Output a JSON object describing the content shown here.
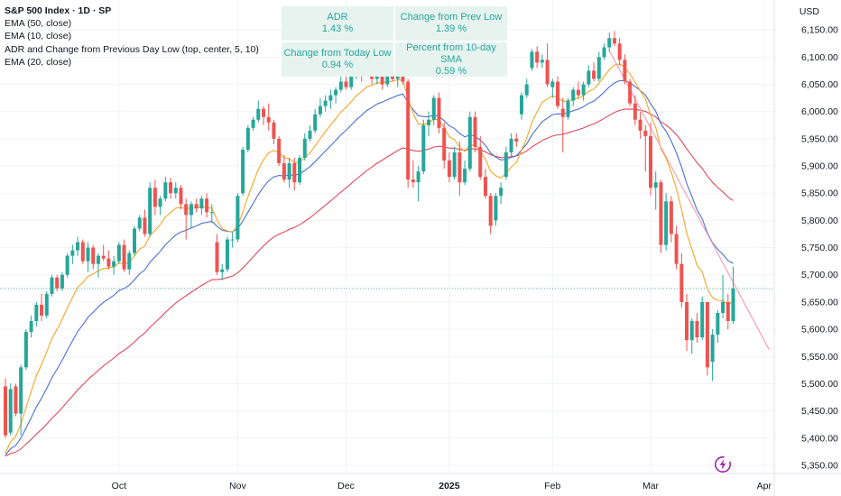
{
  "header": {
    "currency": "USD",
    "title": "S&P 500 Index · 1D · SP"
  },
  "legend": {
    "items": [
      "EMA (50, close)",
      "EMA (10, close)",
      "ADR and Change from Previous Day Low (top, center, 5, 10)",
      "EMA (20, close)"
    ]
  },
  "info_table": {
    "cells": [
      {
        "label": "ADR",
        "value": "1.43 %"
      },
      {
        "label": "Change from Prev Low",
        "value": "1.39 %"
      },
      {
        "label": "Change from Today Low",
        "value": "0.94 %"
      },
      {
        "label": "Percent from 10-day SMA",
        "value": "0.59 %"
      }
    ]
  },
  "colors": {
    "up": "#26a69a",
    "down": "#ef5350",
    "ema10": "#f5a623",
    "ema20": "#4a6fd6",
    "ema50": "#e04a5a",
    "trendline": "#f4a0b4",
    "info_bg": "#e6f3ef",
    "info_text": "#26a69a",
    "last_price_line": "#26a69a"
  },
  "icons": {
    "bolt": "lightning-bolt-icon"
  },
  "chart_data": {
    "type": "candlestick",
    "title": "S&P 500 Index · 1D · SP",
    "y_axis_ticks": [
      6150,
      6100,
      6050,
      6000,
      5950,
      5900,
      5850,
      5800,
      5750,
      5700,
      5650,
      5600,
      5550,
      5500,
      5450,
      5400,
      5350
    ],
    "y_tick_labels": [
      "6,150.00",
      "6,100.00",
      "6,050.00",
      "6,000.00",
      "5,950.00",
      "5,900.00",
      "5,850.00",
      "5,800.00",
      "5,750.00",
      "5,700.00",
      "5,650.00",
      "5,600.00",
      "5,550.00",
      "5,500.00",
      "5,450.00",
      "5,400.00",
      "5,350.00"
    ],
    "ylim": [
      5335,
      6205
    ],
    "x_axis_ticks": [
      {
        "label": "Oct",
        "index": 22,
        "bold": false
      },
      {
        "label": "Nov",
        "index": 45,
        "bold": false
      },
      {
        "label": "Dec",
        "index": 66,
        "bold": false
      },
      {
        "label": "2025",
        "index": 86,
        "bold": true
      },
      {
        "label": "Feb",
        "index": 106,
        "bold": false
      },
      {
        "label": "Mar",
        "index": 125,
        "bold": false
      },
      {
        "label": "Apr",
        "index": 147,
        "bold": false
      }
    ],
    "last_price": 5675,
    "trendline": {
      "x": [
        117,
        148
      ],
      "y": [
        6112,
        5562
      ]
    },
    "candles": [
      {
        "o": 5495,
        "h": 5510,
        "l": 5400,
        "c": 5405
      },
      {
        "o": 5410,
        "h": 5500,
        "l": 5405,
        "c": 5490
      },
      {
        "o": 5495,
        "h": 5500,
        "l": 5440,
        "c": 5445
      },
      {
        "o": 5445,
        "h": 5535,
        "l": 5405,
        "c": 5530
      },
      {
        "o": 5530,
        "h": 5600,
        "l": 5525,
        "c": 5595
      },
      {
        "o": 5595,
        "h": 5625,
        "l": 5585,
        "c": 5615
      },
      {
        "o": 5615,
        "h": 5650,
        "l": 5605,
        "c": 5645
      },
      {
        "o": 5645,
        "h": 5665,
        "l": 5615,
        "c": 5625
      },
      {
        "o": 5625,
        "h": 5670,
        "l": 5620,
        "c": 5665
      },
      {
        "o": 5665,
        "h": 5700,
        "l": 5660,
        "c": 5695
      },
      {
        "o": 5695,
        "h": 5700,
        "l": 5670,
        "c": 5675
      },
      {
        "o": 5675,
        "h": 5705,
        "l": 5670,
        "c": 5700
      },
      {
        "o": 5700,
        "h": 5740,
        "l": 5695,
        "c": 5735
      },
      {
        "o": 5735,
        "h": 5755,
        "l": 5720,
        "c": 5745
      },
      {
        "o": 5745,
        "h": 5770,
        "l": 5735,
        "c": 5760
      },
      {
        "o": 5760,
        "h": 5765,
        "l": 5720,
        "c": 5725
      },
      {
        "o": 5725,
        "h": 5760,
        "l": 5705,
        "c": 5750
      },
      {
        "o": 5750,
        "h": 5755,
        "l": 5710,
        "c": 5720
      },
      {
        "o": 5720,
        "h": 5740,
        "l": 5695,
        "c": 5735
      },
      {
        "o": 5735,
        "h": 5755,
        "l": 5725,
        "c": 5730
      },
      {
        "o": 5730,
        "h": 5745,
        "l": 5710,
        "c": 5715
      },
      {
        "o": 5715,
        "h": 5735,
        "l": 5700,
        "c": 5725
      },
      {
        "o": 5725,
        "h": 5760,
        "l": 5720,
        "c": 5755
      },
      {
        "o": 5755,
        "h": 5765,
        "l": 5705,
        "c": 5710
      },
      {
        "o": 5710,
        "h": 5745,
        "l": 5700,
        "c": 5740
      },
      {
        "o": 5740,
        "h": 5790,
        "l": 5735,
        "c": 5785
      },
      {
        "o": 5785,
        "h": 5810,
        "l": 5780,
        "c": 5805
      },
      {
        "o": 5805,
        "h": 5820,
        "l": 5770,
        "c": 5775
      },
      {
        "o": 5775,
        "h": 5870,
        "l": 5770,
        "c": 5860
      },
      {
        "o": 5860,
        "h": 5875,
        "l": 5810,
        "c": 5825
      },
      {
        "o": 5825,
        "h": 5845,
        "l": 5810,
        "c": 5840
      },
      {
        "o": 5840,
        "h": 5880,
        "l": 5835,
        "c": 5870
      },
      {
        "o": 5870,
        "h": 5878,
        "l": 5840,
        "c": 5850
      },
      {
        "o": 5850,
        "h": 5870,
        "l": 5840,
        "c": 5860
      },
      {
        "o": 5860,
        "h": 5865,
        "l": 5820,
        "c": 5830
      },
      {
        "o": 5830,
        "h": 5840,
        "l": 5765,
        "c": 5810
      },
      {
        "o": 5810,
        "h": 5835,
        "l": 5785,
        "c": 5830
      },
      {
        "o": 5830,
        "h": 5840,
        "l": 5815,
        "c": 5822
      },
      {
        "o": 5822,
        "h": 5845,
        "l": 5810,
        "c": 5840
      },
      {
        "o": 5840,
        "h": 5850,
        "l": 5805,
        "c": 5815
      },
      {
        "o": 5815,
        "h": 5830,
        "l": 5795,
        "c": 5815
      },
      {
        "o": 5760,
        "h": 5775,
        "l": 5700,
        "c": 5705
      },
      {
        "o": 5705,
        "h": 5720,
        "l": 5690,
        "c": 5710
      },
      {
        "o": 5710,
        "h": 5770,
        "l": 5705,
        "c": 5765
      },
      {
        "o": 5765,
        "h": 5780,
        "l": 5750,
        "c": 5765
      },
      {
        "o": 5765,
        "h": 5850,
        "l": 5760,
        "c": 5845
      },
      {
        "o": 5850,
        "h": 5935,
        "l": 5845,
        "c": 5930
      },
      {
        "o": 5930,
        "h": 5975,
        "l": 5925,
        "c": 5970
      },
      {
        "o": 5970,
        "h": 5990,
        "l": 5965,
        "c": 5985
      },
      {
        "o": 5985,
        "h": 6020,
        "l": 5980,
        "c": 6005
      },
      {
        "o": 6005,
        "h": 6010,
        "l": 5975,
        "c": 5990
      },
      {
        "o": 5990,
        "h": 6015,
        "l": 5965,
        "c": 5980
      },
      {
        "o": 5980,
        "h": 5985,
        "l": 5940,
        "c": 5950
      },
      {
        "o": 5950,
        "h": 5955,
        "l": 5900,
        "c": 5905
      },
      {
        "o": 5905,
        "h": 5920,
        "l": 5870,
        "c": 5875
      },
      {
        "o": 5875,
        "h": 5915,
        "l": 5860,
        "c": 5905
      },
      {
        "o": 5905,
        "h": 5915,
        "l": 5855,
        "c": 5870
      },
      {
        "o": 5870,
        "h": 5920,
        "l": 5865,
        "c": 5915
      },
      {
        "o": 5915,
        "h": 5960,
        "l": 5910,
        "c": 5950
      },
      {
        "o": 5950,
        "h": 5975,
        "l": 5945,
        "c": 5965
      },
      {
        "o": 5965,
        "h": 6005,
        "l": 5960,
        "c": 5995
      },
      {
        "o": 5995,
        "h": 6025,
        "l": 5990,
        "c": 6010
      },
      {
        "o": 6010,
        "h": 6030,
        "l": 6000,
        "c": 6020
      },
      {
        "o": 6020,
        "h": 6040,
        "l": 6005,
        "c": 6030
      },
      {
        "o": 6030,
        "h": 6045,
        "l": 6015,
        "c": 6040
      },
      {
        "o": 6040,
        "h": 6065,
        "l": 6035,
        "c": 6055
      },
      {
        "o": 6055,
        "h": 6075,
        "l": 6040,
        "c": 6045
      },
      {
        "o": 6045,
        "h": 6070,
        "l": 6040,
        "c": 6065
      },
      {
        "o": 6065,
        "h": 6090,
        "l": 6060,
        "c": 6080
      },
      {
        "o": 6080,
        "h": 6090,
        "l": 6055,
        "c": 6070
      },
      {
        "o": 6070,
        "h": 6095,
        "l": 6065,
        "c": 6085
      },
      {
        "o": 6085,
        "h": 6095,
        "l": 6050,
        "c": 6060
      },
      {
        "o": 6060,
        "h": 6085,
        "l": 6050,
        "c": 6075
      },
      {
        "o": 6075,
        "h": 6085,
        "l": 6040,
        "c": 6050
      },
      {
        "o": 6050,
        "h": 6075,
        "l": 6045,
        "c": 6065
      },
      {
        "o": 6065,
        "h": 6085,
        "l": 6055,
        "c": 6060
      },
      {
        "o": 6060,
        "h": 6075,
        "l": 6045,
        "c": 6070
      },
      {
        "o": 6070,
        "h": 6080,
        "l": 6050,
        "c": 6055
      },
      {
        "o": 6055,
        "h": 6060,
        "l": 5860,
        "c": 5875
      },
      {
        "o": 5875,
        "h": 5910,
        "l": 5860,
        "c": 5870
      },
      {
        "o": 5870,
        "h": 5900,
        "l": 5835,
        "c": 5890
      },
      {
        "o": 5890,
        "h": 5985,
        "l": 5885,
        "c": 5975
      },
      {
        "o": 5975,
        "h": 6000,
        "l": 5955,
        "c": 5985
      },
      {
        "o": 5985,
        "h": 6030,
        "l": 5975,
        "c": 6025
      },
      {
        "o": 6025,
        "h": 6035,
        "l": 5960,
        "c": 5970
      },
      {
        "o": 5970,
        "h": 5980,
        "l": 5895,
        "c": 5910
      },
      {
        "o": 5910,
        "h": 5925,
        "l": 5870,
        "c": 5880
      },
      {
        "o": 5880,
        "h": 5935,
        "l": 5875,
        "c": 5925
      },
      {
        "o": 5925,
        "h": 5945,
        "l": 5845,
        "c": 5870
      },
      {
        "o": 5870,
        "h": 5910,
        "l": 5865,
        "c": 5895
      },
      {
        "o": 5895,
        "h": 6000,
        "l": 5890,
        "c": 5990
      },
      {
        "o": 5990,
        "h": 6000,
        "l": 5925,
        "c": 5935
      },
      {
        "o": 5935,
        "h": 5955,
        "l": 5875,
        "c": 5880
      },
      {
        "o": 5880,
        "h": 5895,
        "l": 5840,
        "c": 5845
      },
      {
        "o": 5845,
        "h": 5850,
        "l": 5775,
        "c": 5790
      },
      {
        "o": 5800,
        "h": 5850,
        "l": 5790,
        "c": 5845
      },
      {
        "o": 5845,
        "h": 5870,
        "l": 5830,
        "c": 5860
      },
      {
        "o": 5880,
        "h": 5935,
        "l": 5875,
        "c": 5925
      },
      {
        "o": 5925,
        "h": 5960,
        "l": 5915,
        "c": 5950
      },
      {
        "o": 5950,
        "h": 5960,
        "l": 5935,
        "c": 5945
      },
      {
        "o": 5995,
        "h": 6035,
        "l": 5985,
        "c": 6030
      },
      {
        "o": 6030,
        "h": 6060,
        "l": 6025,
        "c": 6050
      },
      {
        "o": 6080,
        "h": 6115,
        "l": 6075,
        "c": 6110
      },
      {
        "o": 6110,
        "h": 6120,
        "l": 6080,
        "c": 6090
      },
      {
        "o": 6090,
        "h": 6105,
        "l": 6080,
        "c": 6095
      },
      {
        "o": 6095,
        "h": 6125,
        "l": 6045,
        "c": 6050
      },
      {
        "o": 6045,
        "h": 6060,
        "l": 6025,
        "c": 6055
      },
      {
        "o": 6055,
        "h": 6065,
        "l": 6005,
        "c": 6010
      },
      {
        "o": 6005,
        "h": 6025,
        "l": 5925,
        "c": 5990
      },
      {
        "o": 5990,
        "h": 6025,
        "l": 5985,
        "c": 6020
      },
      {
        "o": 6020,
        "h": 6045,
        "l": 6010,
        "c": 6040
      },
      {
        "o": 6040,
        "h": 6055,
        "l": 6025,
        "c": 6030
      },
      {
        "o": 6030,
        "h": 6055,
        "l": 6020,
        "c": 6050
      },
      {
        "o": 6050,
        "h": 6085,
        "l": 6045,
        "c": 6075
      },
      {
        "o": 6075,
        "h": 6090,
        "l": 6055,
        "c": 6060
      },
      {
        "o": 6060,
        "h": 6110,
        "l": 6055,
        "c": 6100
      },
      {
        "o": 6100,
        "h": 6125,
        "l": 6095,
        "c": 6118
      },
      {
        "o": 6118,
        "h": 6145,
        "l": 6110,
        "c": 6135
      },
      {
        "o": 6135,
        "h": 6148,
        "l": 6120,
        "c": 6125
      },
      {
        "o": 6125,
        "h": 6135,
        "l": 6085,
        "c": 6095
      },
      {
        "o": 6095,
        "h": 6105,
        "l": 6050,
        "c": 6055
      },
      {
        "o": 6055,
        "h": 6060,
        "l": 6010,
        "c": 6015
      },
      {
        "o": 6015,
        "h": 6030,
        "l": 5975,
        "c": 5985
      },
      {
        "o": 5985,
        "h": 6000,
        "l": 5950,
        "c": 5965
      },
      {
        "o": 5965,
        "h": 5975,
        "l": 5890,
        "c": 5955
      },
      {
        "o": 5955,
        "h": 5980,
        "l": 5845,
        "c": 5860
      },
      {
        "o": 5860,
        "h": 5890,
        "l": 5820,
        "c": 5870
      },
      {
        "o": 5870,
        "h": 5875,
        "l": 5740,
        "c": 5755
      },
      {
        "o": 5755,
        "h": 5850,
        "l": 5745,
        "c": 5835
      },
      {
        "o": 5835,
        "h": 5845,
        "l": 5760,
        "c": 5775
      },
      {
        "o": 5775,
        "h": 5790,
        "l": 5710,
        "c": 5720
      },
      {
        "o": 5720,
        "h": 5740,
        "l": 5640,
        "c": 5650
      },
      {
        "o": 5650,
        "h": 5665,
        "l": 5560,
        "c": 5580
      },
      {
        "o": 5580,
        "h": 5620,
        "l": 5555,
        "c": 5615
      },
      {
        "o": 5615,
        "h": 5630,
        "l": 5575,
        "c": 5585
      },
      {
        "o": 5585,
        "h": 5660,
        "l": 5580,
        "c": 5650
      },
      {
        "o": 5650,
        "h": 5650,
        "l": 5515,
        "c": 5530
      },
      {
        "o": 5540,
        "h": 5600,
        "l": 5505,
        "c": 5590
      },
      {
        "o": 5590,
        "h": 5635,
        "l": 5575,
        "c": 5630
      },
      {
        "o": 5630,
        "h": 5700,
        "l": 5620,
        "c": 5650
      },
      {
        "o": 5650,
        "h": 5665,
        "l": 5600,
        "c": 5615
      },
      {
        "o": 5615,
        "h": 5715,
        "l": 5610,
        "c": 5675
      }
    ]
  }
}
